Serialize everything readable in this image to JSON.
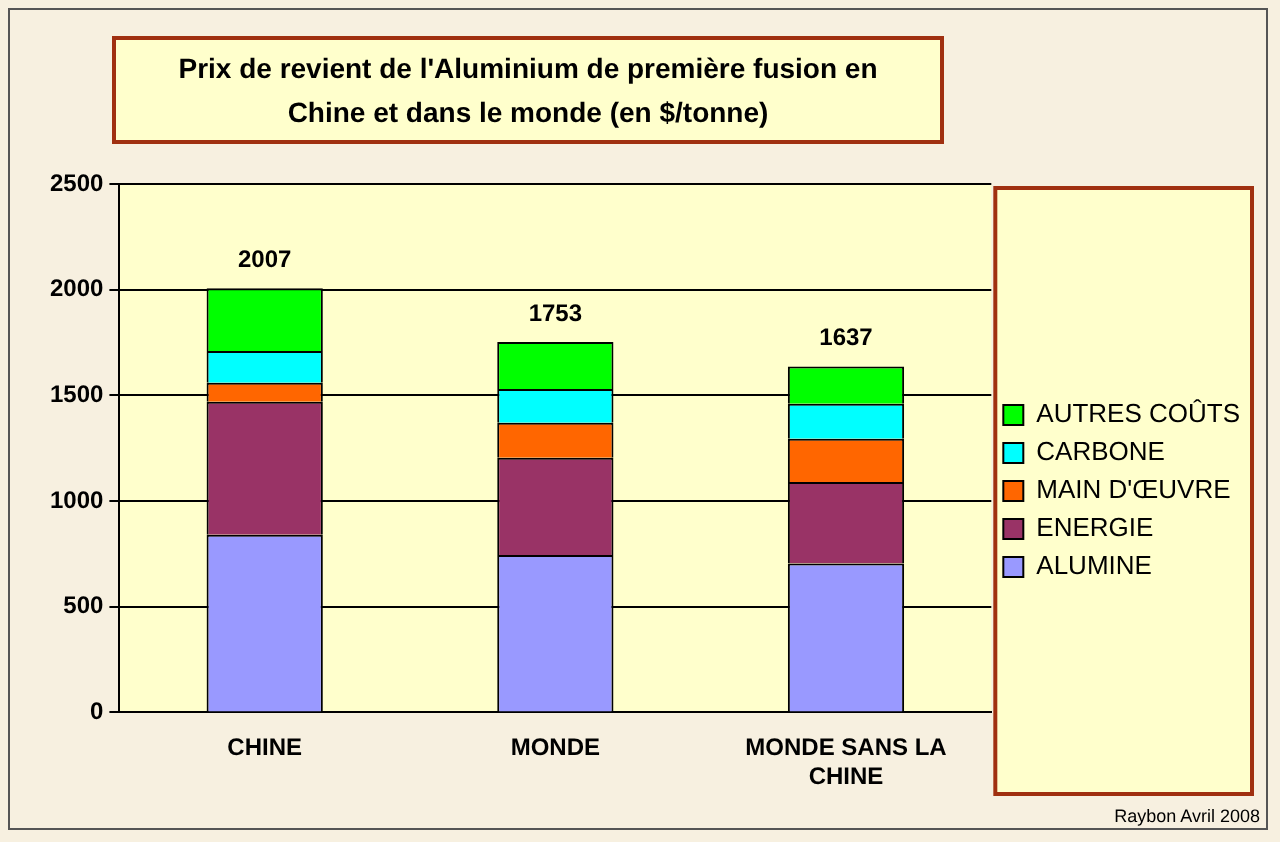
{
  "chart_data": {
    "type": "bar",
    "title": "Prix de revient  de l'Aluminium de première fusion en Chine et dans le monde (en $/tonne)",
    "categories": [
      "CHINE",
      "MONDE",
      "MONDE SANS LA CHINE"
    ],
    "stacked": true,
    "series": [
      {
        "name": "ALUMINE",
        "color": "#9999ff",
        "values": [
          840,
          745,
          705
        ]
      },
      {
        "name": "ENERGIE",
        "color": "#993366",
        "values": [
          630,
          460,
          385
        ]
      },
      {
        "name": "MAIN D'ŒUVRE",
        "color": "#ff6600",
        "values": [
          90,
          165,
          205
        ]
      },
      {
        "name": "CARBONE",
        "color": "#00ffff",
        "values": [
          150,
          160,
          165
        ]
      },
      {
        "name": "AUTRES COÛTS",
        "color": "#00ff00",
        "values": [
          297,
          223,
          177
        ]
      }
    ],
    "totals": [
      "2007",
      "1753",
      "1637"
    ],
    "ylim": [
      0,
      2500
    ],
    "yticks": [
      0,
      500,
      1000,
      1500,
      2000,
      2500
    ],
    "grid": "y",
    "legend": "right",
    "annotations": [
      "Raybon Avril 2008"
    ]
  }
}
